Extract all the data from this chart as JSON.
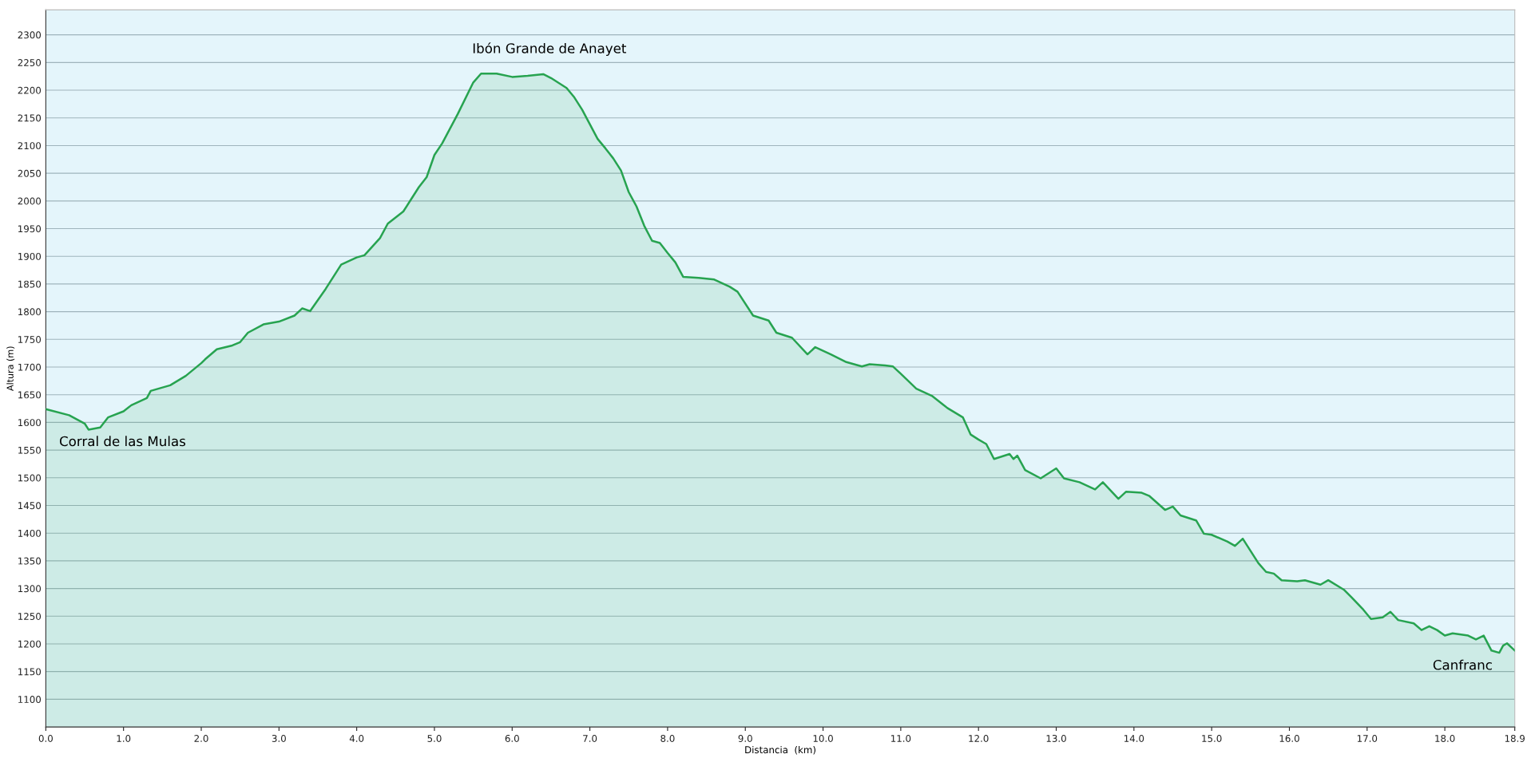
{
  "chart_data": {
    "type": "area",
    "xlabel": "Distancia  (km)",
    "ylabel": "Altura (m)",
    "x": [
      0,
      0.3,
      0.5,
      0.55,
      0.7,
      0.8,
      1.0,
      1.1,
      1.3,
      1.35,
      1.6,
      1.8,
      2.0,
      2.05,
      2.2,
      2.4,
      2.5,
      2.6,
      2.8,
      3.0,
      3.2,
      3.3,
      3.4,
      3.6,
      3.8,
      4.0,
      4.1,
      4.3,
      4.4,
      4.6,
      4.7,
      4.8,
      4.9,
      5.0,
      5.1,
      5.3,
      5.5,
      5.6,
      5.8,
      6.0,
      6.2,
      6.4,
      6.5,
      6.7,
      6.8,
      6.9,
      7.1,
      7.2,
      7.3,
      7.4,
      7.5,
      7.6,
      7.7,
      7.8,
      7.9,
      8.0,
      8.1,
      8.2,
      8.4,
      8.6,
      8.8,
      8.9,
      9.1,
      9.3,
      9.4,
      9.6,
      9.8,
      9.9,
      10.1,
      10.3,
      10.5,
      10.6,
      10.8,
      10.9,
      11.0,
      11.2,
      11.4,
      11.6,
      11.8,
      11.9,
      12.0,
      12.1,
      12.2,
      12.4,
      12.45,
      12.5,
      12.6,
      12.8,
      13.0,
      13.1,
      13.3,
      13.5,
      13.6,
      13.8,
      13.9,
      14.1,
      14.2,
      14.4,
      14.5,
      14.6,
      14.8,
      14.9,
      15.0,
      15.2,
      15.3,
      15.4,
      15.5,
      15.6,
      15.7,
      15.8,
      15.9,
      16.1,
      16.2,
      16.4,
      16.5,
      16.7,
      16.8,
      16.95,
      17.05,
      17.2,
      17.3,
      17.4,
      17.6,
      17.7,
      17.8,
      17.9,
      18.0,
      18.1,
      18.3,
      18.4,
      18.5,
      18.6,
      18.7,
      18.75,
      18.8,
      18.9
    ],
    "series": [
      {
        "color": "#27a350",
        "values": [
          1624,
          1613,
          1598,
          1587,
          1591,
          1609,
          1620,
          1631,
          1644,
          1657,
          1667,
          1684,
          1707,
          1714,
          1732,
          1739,
          1745,
          1762,
          1777,
          1782,
          1793,
          1806,
          1801,
          1841,
          1885,
          1898,
          1902,
          1933,
          1959,
          1981,
          2003,
          2025,
          2043,
          2083,
          2104,
          2157,
          2214,
          2230,
          2230,
          2224,
          2226,
          2229,
          2222,
          2204,
          2187,
          2165,
          2112,
          2095,
          2077,
          2055,
          2016,
          1990,
          1955,
          1928,
          1924,
          1906,
          1889,
          1863,
          1861,
          1858,
          1845,
          1836,
          1793,
          1784,
          1762,
          1753,
          1723,
          1736,
          1723,
          1709,
          1701,
          1705,
          1703,
          1701,
          1688,
          1661,
          1648,
          1626,
          1609,
          1578,
          1569,
          1561,
          1534,
          1543,
          1534,
          1540,
          1514,
          1499,
          1517,
          1499,
          1492,
          1479,
          1492,
          1462,
          1475,
          1473,
          1467,
          1442,
          1448,
          1432,
          1423,
          1399,
          1397,
          1385,
          1377,
          1390,
          1368,
          1346,
          1330,
          1327,
          1315,
          1313,
          1315,
          1307,
          1315,
          1298,
          1284,
          1262,
          1245,
          1248,
          1258,
          1243,
          1237,
          1225,
          1232,
          1225,
          1215,
          1219,
          1215,
          1208,
          1215,
          1188,
          1184,
          1197,
          1201,
          1188
        ]
      }
    ],
    "xlim": [
      0,
      18.9
    ],
    "ylim": [
      1050,
      2345
    ],
    "xticks": [
      {
        "value": 0,
        "label": "0.0"
      },
      {
        "value": 1,
        "label": "1.0"
      },
      {
        "value": 2,
        "label": "2.0"
      },
      {
        "value": 3,
        "label": "3.0"
      },
      {
        "value": 4,
        "label": "4.0"
      },
      {
        "value": 5,
        "label": "5.0"
      },
      {
        "value": 6,
        "label": "6.0"
      },
      {
        "value": 7,
        "label": "7.0"
      },
      {
        "value": 8,
        "label": "8.0"
      },
      {
        "value": 9,
        "label": "9.0"
      },
      {
        "value": 10,
        "label": "10.0"
      },
      {
        "value": 11,
        "label": "11.0"
      },
      {
        "value": 12,
        "label": "12.0"
      },
      {
        "value": 13,
        "label": "13.0"
      },
      {
        "value": 14,
        "label": "14.0"
      },
      {
        "value": 15,
        "label": "15.0"
      },
      {
        "value": 16,
        "label": "16.0"
      },
      {
        "value": 17,
        "label": "17.0"
      },
      {
        "value": 18,
        "label": "18.0"
      },
      {
        "value": 18.9,
        "label": "18.9"
      }
    ],
    "yticks": [
      1100,
      1150,
      1200,
      1250,
      1300,
      1350,
      1400,
      1450,
      1500,
      1550,
      1600,
      1650,
      1700,
      1750,
      1800,
      1850,
      1900,
      1950,
      2000,
      2050,
      2100,
      2150,
      2200,
      2250,
      2300
    ],
    "grid": "y",
    "annotations": [
      "Corral de las Mulas",
      "Ibón Grande de Anayet",
      "Canfranc"
    ]
  }
}
